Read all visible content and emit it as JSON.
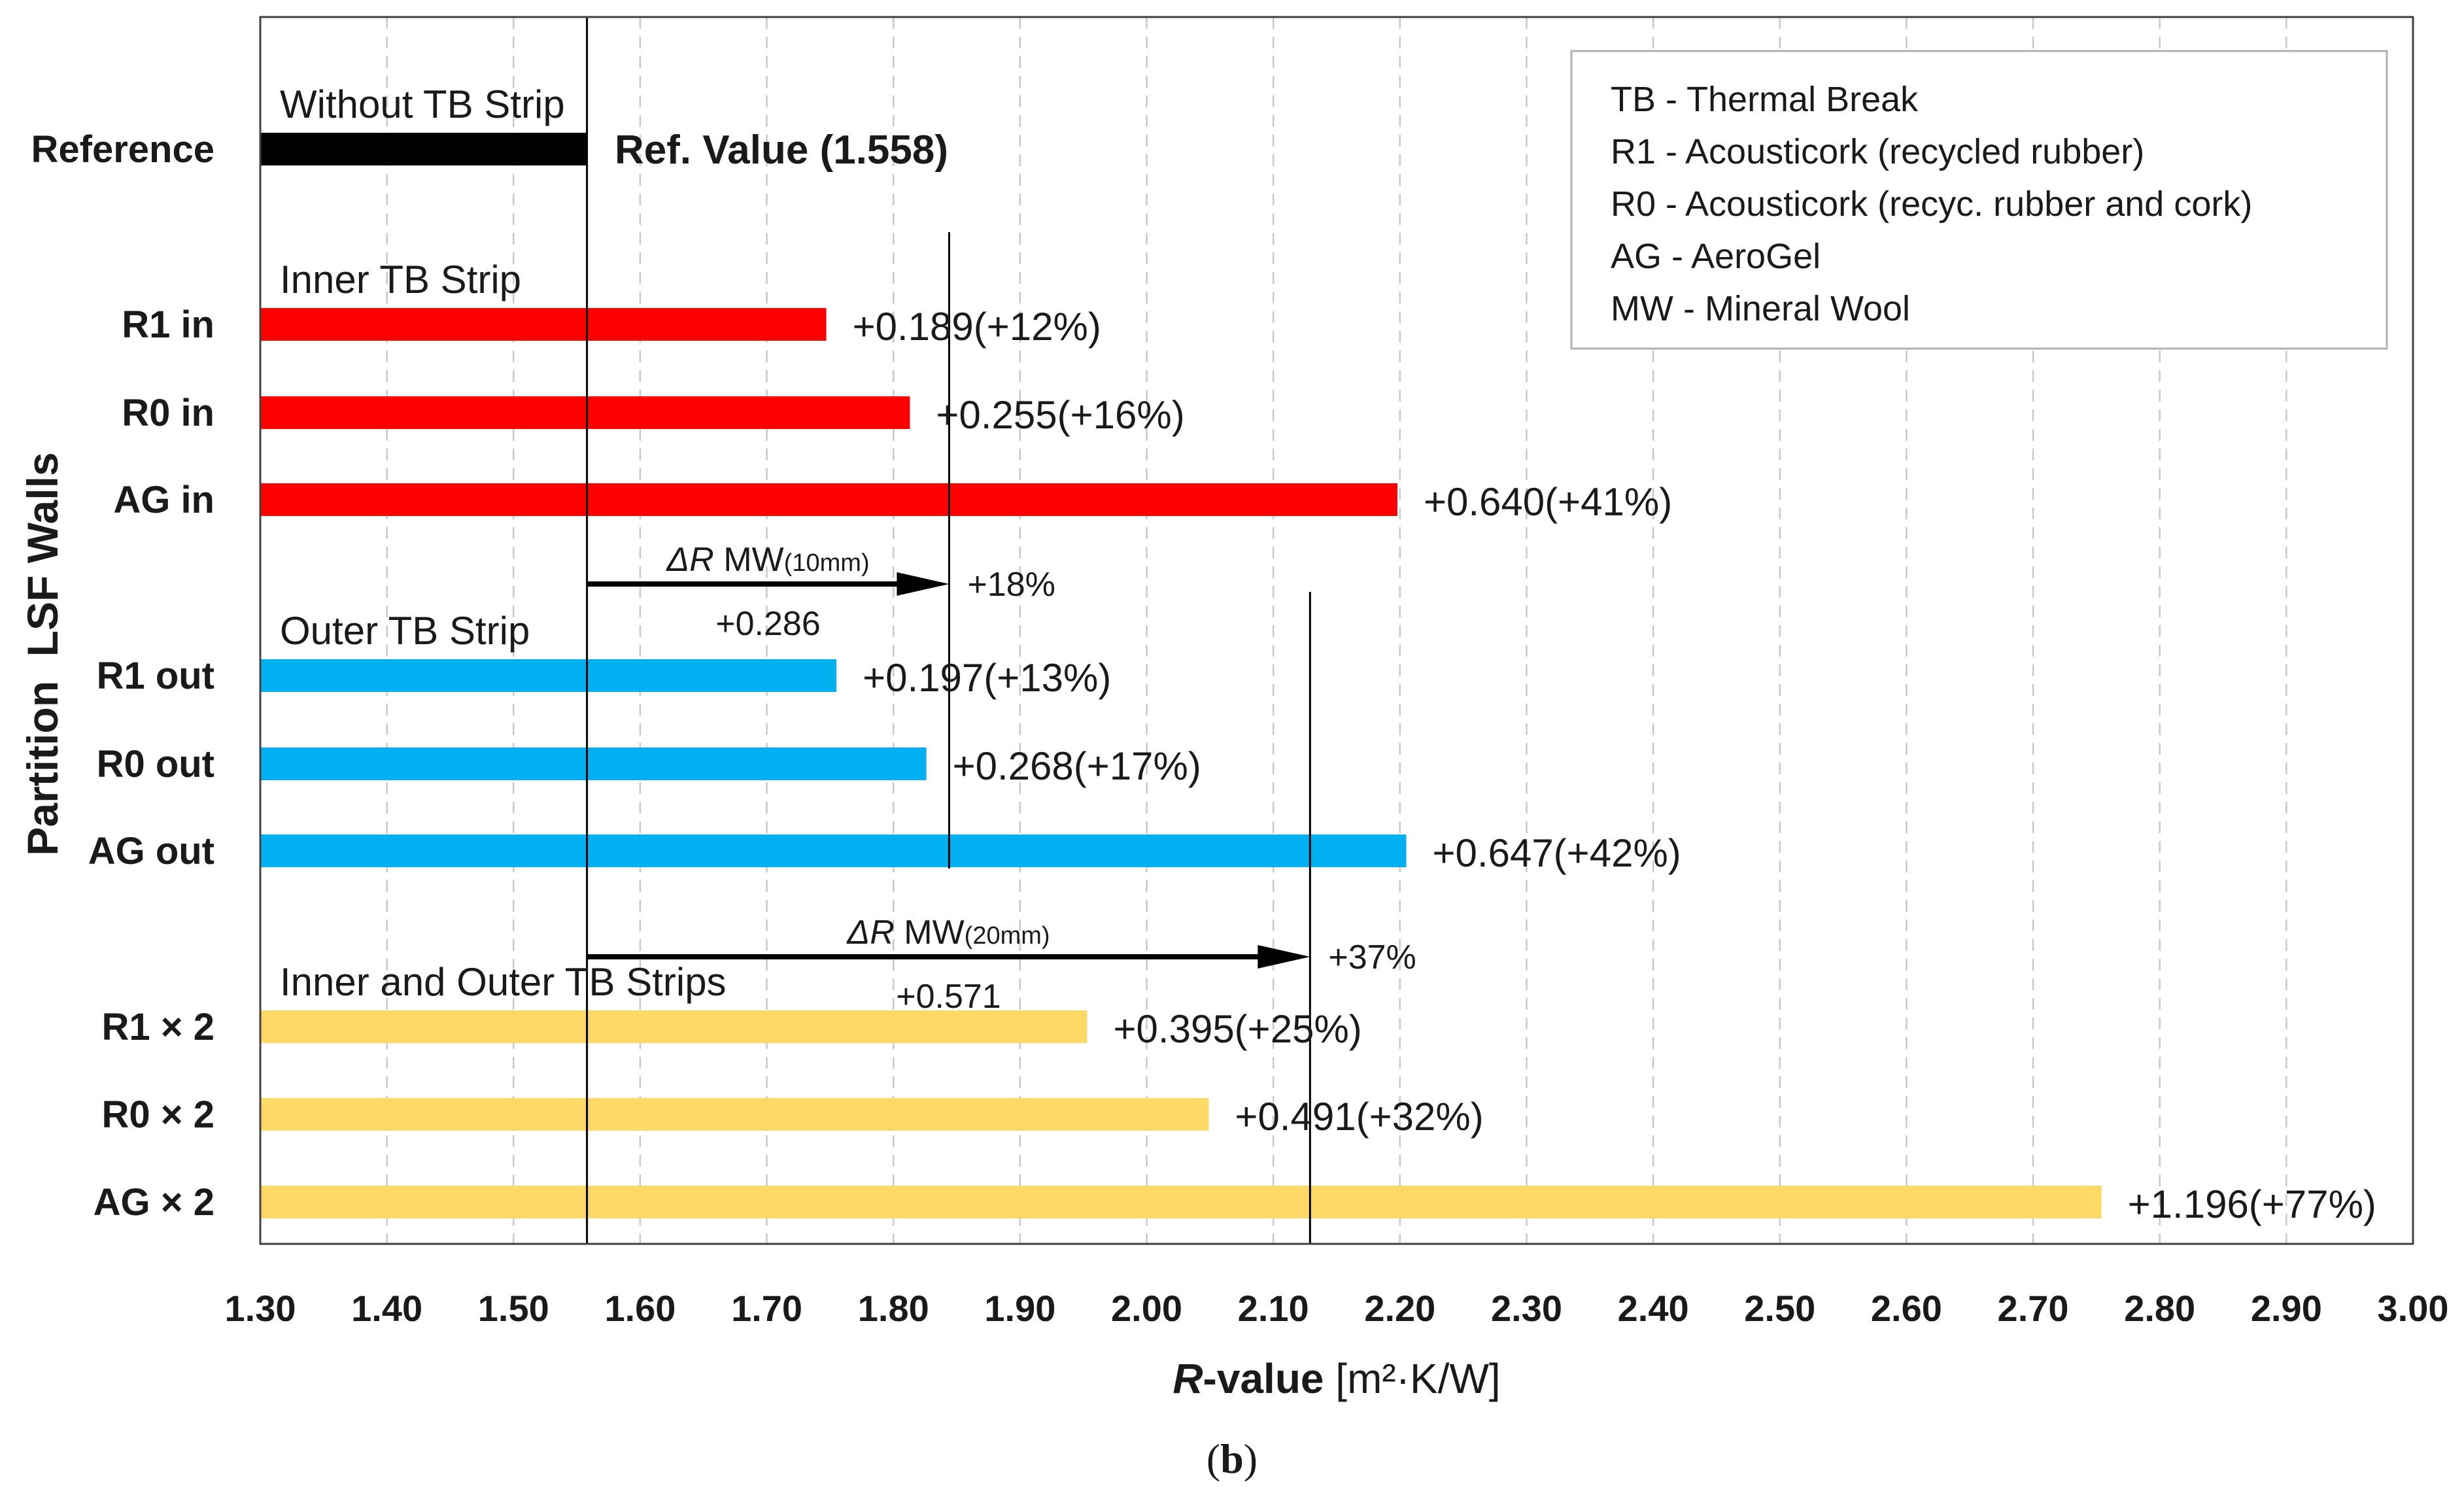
{
  "chart_data": {
    "type": "bar",
    "orientation": "horizontal",
    "ylabel": "Partition  LSF Walls",
    "xlabel_prefix": "R",
    "xlabel_suffix": "-value",
    "xlabel_unit": "[m²·K/W]",
    "xlim": [
      1.3,
      3.0
    ],
    "x_ticks": [
      "1.30",
      "1.40",
      "1.50",
      "1.60",
      "1.70",
      "1.80",
      "1.90",
      "2.00",
      "2.10",
      "2.20",
      "2.30",
      "2.40",
      "2.50",
      "2.60",
      "2.70",
      "2.80",
      "2.90",
      "3.00"
    ],
    "grid": "vertical-dashed",
    "legend_position": "top-right",
    "reference_value": 1.558,
    "reference_label": "Ref. Value (1.558)",
    "caption_open": "(",
    "caption_letter": "b",
    "caption_close": ")",
    "groups": [
      {
        "label": "Without TB Strip"
      },
      {
        "label": "Inner TB Strip"
      },
      {
        "label": "Outer TB Strip"
      },
      {
        "label": "Inner and Outer TB Strips"
      }
    ],
    "bars": [
      {
        "category": "Reference",
        "value": 1.558,
        "delta": "",
        "color": "#000000"
      },
      {
        "category": "R1 in",
        "value": 1.747,
        "delta": "+0.189(+12%)",
        "color": "#ff0000"
      },
      {
        "category": "R0 in",
        "value": 1.813,
        "delta": "+0.255(+16%)",
        "color": "#ff0000"
      },
      {
        "category": "AG in",
        "value": 2.198,
        "delta": "+0.640(+41%)",
        "color": "#ff0000"
      },
      {
        "category": "R1 out",
        "value": 1.755,
        "delta": "+0.197(+13%)",
        "color": "#00b0f0"
      },
      {
        "category": "R0 out",
        "value": 1.826,
        "delta": "+0.268(+17%)",
        "color": "#00b0f0"
      },
      {
        "category": "AG out",
        "value": 2.205,
        "delta": "+0.647(+42%)",
        "color": "#00b0f0"
      },
      {
        "category": "R1 × 2",
        "value": 1.953,
        "delta": "+0.395(+25%)",
        "color": "#ffd966"
      },
      {
        "category": "R0 × 2",
        "value": 2.049,
        "delta": "+0.491(+32%)",
        "color": "#ffd966"
      },
      {
        "category": "AG × 2",
        "value": 2.754,
        "delta": "+1.196(+77%)",
        "color": "#ffd966"
      }
    ],
    "annotations": [
      {
        "delta_symbol": "ΔR",
        "label": "MW",
        "sub": "(10mm)",
        "value": "+0.286",
        "percent": "+18%",
        "from": 1.558,
        "to": 1.844
      },
      {
        "delta_symbol": "ΔR",
        "label": "MW",
        "sub": "(20mm)",
        "value": "+0.571",
        "percent": "+37%",
        "from": 1.558,
        "to": 2.129
      }
    ],
    "legend": [
      "TB - Thermal Break",
      "R1 - Acousticork (recycled rubber)",
      "R0 - Acousticork (recyc. rubber and cork)",
      "AG - AeroGel",
      "MW - Mineral Wool"
    ]
  }
}
